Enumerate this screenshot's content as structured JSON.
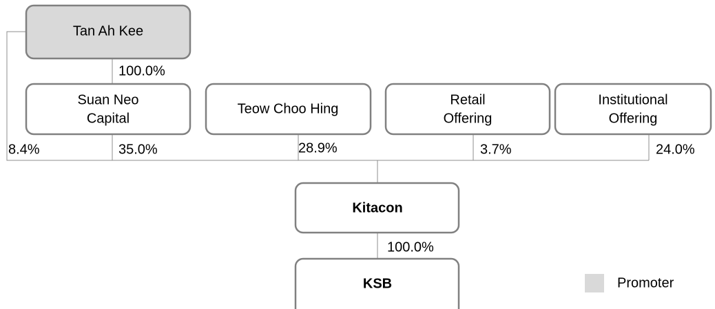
{
  "nodes": [
    {
      "label": [
        "Tan Ah Kee"
      ]
    },
    {
      "label": [
        "Suan Neo",
        "Capital"
      ]
    },
    {
      "label": [
        "Teow Choo Hing"
      ]
    },
    {
      "label": [
        "Retail",
        "Offering"
      ]
    },
    {
      "label": [
        "Institutional",
        "Offering"
      ]
    },
    {
      "label": [
        "Kitacon"
      ]
    },
    {
      "label": [
        "KSB"
      ]
    }
  ],
  "edges": [
    {
      "from": "Tan Ah Kee",
      "to": "Suan Neo Capital",
      "label": "100.0%"
    },
    {
      "from": "Tan Ah Kee",
      "to": "Kitacon",
      "label": "8.4%"
    },
    {
      "from": "Suan Neo Capital",
      "to": "Kitacon",
      "label": "35.0%"
    },
    {
      "from": "Teow Choo Hing",
      "to": "Kitacon",
      "label": "28.9%"
    },
    {
      "from": "Retail Offering",
      "to": "Kitacon",
      "label": "3.7%"
    },
    {
      "from": "Institutional Offering",
      "to": "Kitacon",
      "label": "24.0%"
    },
    {
      "from": "Kitacon",
      "to": "KSB",
      "label": "100.0%"
    }
  ],
  "legend": {
    "label": "Promoter"
  }
}
